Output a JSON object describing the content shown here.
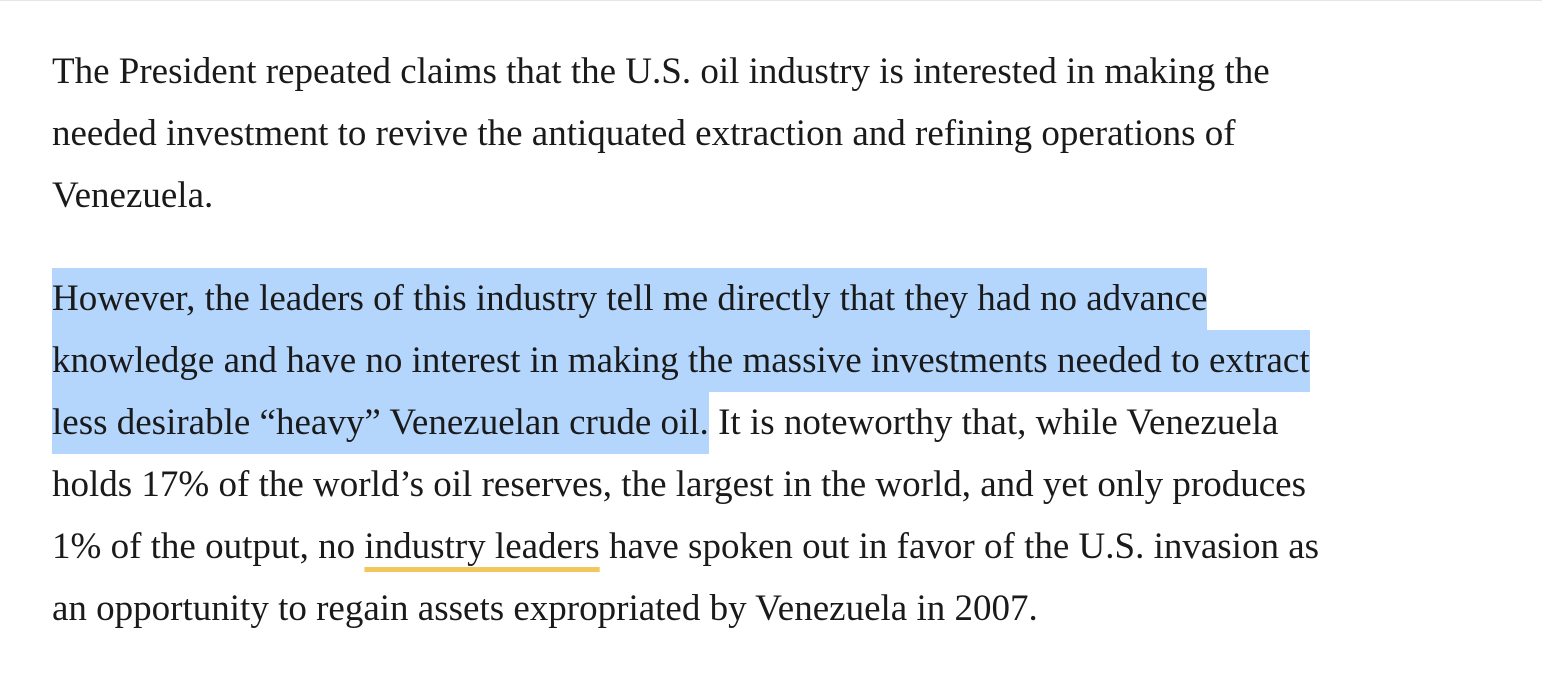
{
  "paragraphs": [
    {
      "lines": [
        [
          {
            "text": "The President repeated claims that the U.S. oil industry is interested in making the"
          }
        ],
        [
          {
            "text": "needed investment to revive the antiquated extraction and refining operations of"
          }
        ],
        [
          {
            "text": "Venezuela."
          }
        ]
      ]
    },
    {
      "lines": [
        [
          {
            "text": "However, the leaders of this industry tell me directly that they had no advance",
            "style": "highlight"
          }
        ],
        [
          {
            "text": "knowledge and have no interest in making the massive investments needed to extract",
            "style": "highlight"
          }
        ],
        [
          {
            "text": "less desirable “heavy” Venezuelan crude oil.",
            "style": "highlight"
          },
          {
            "text": " It is noteworthy that, while Venezuela"
          }
        ],
        [
          {
            "text": "holds 17% of the world’s oil reserves, the largest in the world, and yet only produces"
          }
        ],
        [
          {
            "text": "1% of the output, no "
          },
          {
            "text": "industry leaders",
            "style": "link"
          },
          {
            "text": " have spoken out in favor of the U.S. invasion as"
          }
        ],
        [
          {
            "text": "an opportunity to regain assets expropriated by Venezuela in 2007."
          }
        ]
      ]
    }
  ]
}
